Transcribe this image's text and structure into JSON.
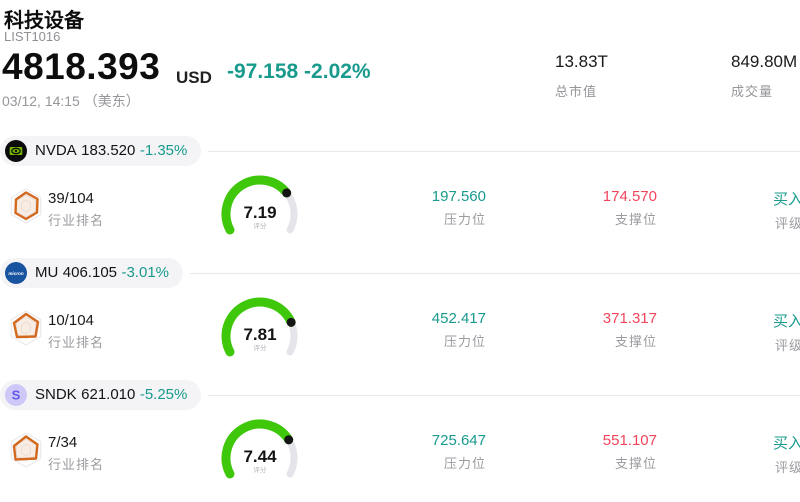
{
  "header": {
    "title": "科技设备",
    "list_id": "LIST1016",
    "price": "4818.393",
    "currency": "USD",
    "change": "-97.158 -2.02%",
    "timestamp": "03/12, 14:15 （美东）",
    "market_cap_value": "13.83T",
    "market_cap_label": "总市值",
    "volume_value": "849.80M",
    "volume_label": "成交量"
  },
  "labels": {
    "industry_rank": "行业排名",
    "score": "评分",
    "pressure": "压力位",
    "support": "支撑位",
    "rating": "评级"
  },
  "colors": {
    "teal": "#189a8d",
    "red": "#f2455c",
    "gauge_green": "#3ec70b",
    "gauge_track": "#e4e4ea"
  },
  "chart_data": [
    {
      "type": "gauge",
      "ticker": "NVDA",
      "score": 7.19,
      "max": 10
    },
    {
      "type": "gauge",
      "ticker": "MU",
      "score": 7.81,
      "max": 10
    },
    {
      "type": "gauge",
      "ticker": "SNDK",
      "score": 7.44,
      "max": 10
    }
  ],
  "rows": [
    {
      "ticker": "NVDA",
      "price": "183.520",
      "change": "-1.35%",
      "industry_rank": "39/104",
      "score": 7.19,
      "pressure": "197.560",
      "support": "174.570",
      "rating": "买入"
    },
    {
      "ticker": "MU",
      "price": "406.105",
      "change": "-3.01%",
      "industry_rank": "10/104",
      "score": 7.81,
      "pressure": "452.417",
      "support": "371.317",
      "rating": "买入"
    },
    {
      "ticker": "SNDK",
      "price": "621.010",
      "change": "-5.25%",
      "industry_rank": "7/34",
      "score": 7.44,
      "pressure": "725.647",
      "support": "551.107",
      "rating": "买入"
    }
  ]
}
